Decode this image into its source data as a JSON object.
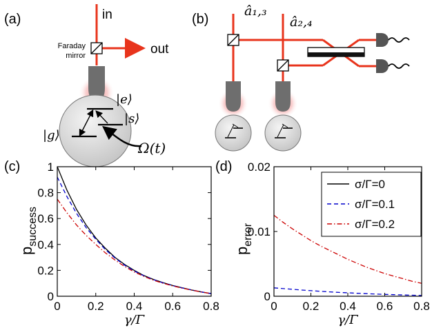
{
  "panels": {
    "a": {
      "label": "(a)",
      "in_label": "in",
      "out_label": "out",
      "mirror_label_line1": "Faraday",
      "mirror_label_line2": "mirror",
      "state_e": "|e⟩",
      "state_s": "|s⟩",
      "state_g": "|g⟩",
      "omega_label": "Ω(t)"
    },
    "b": {
      "label": "(b)",
      "mode_13": "â₁,₃",
      "mode_24": "â₂,₄"
    },
    "c": {
      "label": "(c)"
    },
    "d": {
      "label": "(d)"
    }
  },
  "colors": {
    "beam": "#e8341c",
    "glow": "#f08a8a",
    "tip": "#6e6e6e",
    "atom": "#d8d8d8",
    "curve_black": "#000000",
    "curve_blue": "#0000cc",
    "curve_red": "#cc0000"
  },
  "chart_data": [
    {
      "type": "line",
      "panel": "c",
      "title": "",
      "xlabel": "γ/Γ",
      "ylabel": "p_success",
      "ylabel_main": "p",
      "ylabel_sub": "success",
      "xlim": [
        0,
        0.8
      ],
      "ylim": [
        0,
        1
      ],
      "xticks": [
        "0",
        "0.2",
        "0.4",
        "0.6",
        "0.8"
      ],
      "yticks": [
        "0",
        "0.2",
        "0.4",
        "0.6",
        "0.8",
        "1"
      ],
      "x": [
        0,
        0.05,
        0.1,
        0.15,
        0.2,
        0.25,
        0.3,
        0.35,
        0.4,
        0.45,
        0.5,
        0.55,
        0.6,
        0.65,
        0.7,
        0.75,
        0.8
      ],
      "series": [
        {
          "name": "σ/Γ=0",
          "style": "solid",
          "color": "#000000",
          "values": [
            1.0,
            0.82,
            0.67,
            0.55,
            0.45,
            0.37,
            0.3,
            0.245,
            0.2,
            0.16,
            0.13,
            0.105,
            0.083,
            0.065,
            0.048,
            0.033,
            0.02
          ]
        },
        {
          "name": "σ/Γ=0.1",
          "style": "dashed",
          "color": "#0000cc",
          "values": [
            0.92,
            0.77,
            0.64,
            0.53,
            0.44,
            0.36,
            0.295,
            0.24,
            0.195,
            0.158,
            0.128,
            0.103,
            0.082,
            0.064,
            0.048,
            0.033,
            0.02
          ]
        },
        {
          "name": "σ/Γ=0.2",
          "style": "dashdot",
          "color": "#cc0000",
          "values": [
            0.75,
            0.645,
            0.55,
            0.47,
            0.4,
            0.335,
            0.28,
            0.23,
            0.188,
            0.153,
            0.124,
            0.1,
            0.08,
            0.062,
            0.047,
            0.033,
            0.02
          ]
        }
      ]
    },
    {
      "type": "line",
      "panel": "d",
      "title": "",
      "xlabel": "γ/Γ",
      "ylabel": "p_error",
      "ylabel_main": "p",
      "ylabel_sub": "error",
      "xlim": [
        0,
        0.8
      ],
      "ylim": [
        0,
        0.02
      ],
      "xticks": [
        "0",
        "0.2",
        "0.4",
        "0.6",
        "0.8"
      ],
      "yticks": [
        "0",
        "0.01",
        "0.02"
      ],
      "legend_position": "top-right",
      "x": [
        0,
        0.05,
        0.1,
        0.15,
        0.2,
        0.25,
        0.3,
        0.35,
        0.4,
        0.45,
        0.5,
        0.55,
        0.6,
        0.65,
        0.7,
        0.75,
        0.8
      ],
      "series": [
        {
          "name": "σ/Γ=0",
          "style": "solid",
          "color": "#000000",
          "values": [
            0,
            0,
            0,
            0,
            0,
            0,
            0,
            0,
            0,
            0,
            0,
            0,
            0,
            0,
            0,
            0,
            0
          ]
        },
        {
          "name": "σ/Γ=0.1",
          "style": "dashed",
          "color": "#0000cc",
          "values": [
            0.0013,
            0.00118,
            0.00107,
            0.00096,
            0.00086,
            0.00077,
            0.00068,
            0.0006,
            0.00053,
            0.00046,
            0.0004,
            0.00034,
            0.00029,
            0.00024,
            0.0002,
            0.00016,
            0.00012
          ]
        },
        {
          "name": "σ/Γ=0.2",
          "style": "dashdot",
          "color": "#cc0000",
          "values": [
            0.0125,
            0.0114,
            0.0104,
            0.0095,
            0.0086,
            0.0078,
            0.0071,
            0.0064,
            0.0057,
            0.0051,
            0.0045,
            0.004,
            0.0035,
            0.0031,
            0.0027,
            0.0023,
            0.002
          ]
        }
      ]
    }
  ]
}
